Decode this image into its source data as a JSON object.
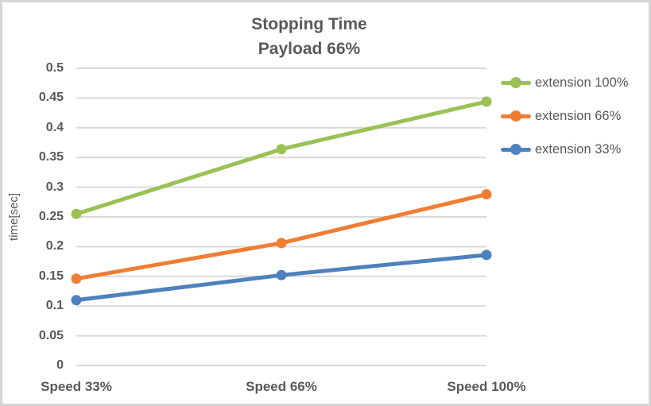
{
  "chart_data": {
    "type": "line",
    "title": "Stopping Time",
    "subtitle": "Payload 66%",
    "categories": [
      "Speed 33%",
      "Speed 66%",
      "Speed 100%"
    ],
    "series": [
      {
        "name": "extension 100%",
        "color": "#9AC155",
        "values": [
          0.255,
          0.364,
          0.444
        ]
      },
      {
        "name": "extension 66%",
        "color": "#EF7D33",
        "values": [
          0.146,
          0.206,
          0.288
        ]
      },
      {
        "name": "extension 33%",
        "color": "#4E81BD",
        "values": [
          0.11,
          0.152,
          0.186
        ]
      }
    ],
    "xlabel": "",
    "ylabel": "time[sec]",
    "ylim": [
      0,
      0.5
    ],
    "yticks": [
      0,
      0.05,
      0.1,
      0.15,
      0.2,
      0.25,
      0.3,
      0.35,
      0.4,
      0.45,
      0.5
    ],
    "ytick_labels": [
      "0",
      "0.05",
      "0.1",
      "0.15",
      "0.2",
      "0.25",
      "0.3",
      "0.35",
      "0.4",
      "0.45",
      "0.5"
    ],
    "grid": true,
    "legend_position": "right",
    "marker": "circle"
  },
  "colors": {
    "text": "#595959",
    "gridline": "#D9D9D9",
    "border": "#D6D6D6",
    "background": "#FFFFFF"
  }
}
